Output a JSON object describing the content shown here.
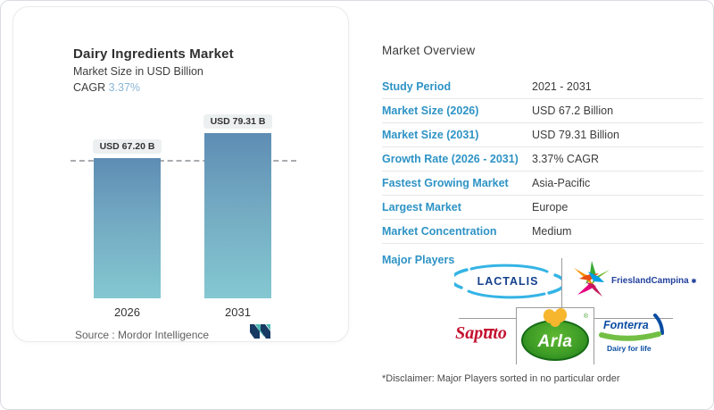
{
  "chart": {
    "title": "Dairy Ingredients Market",
    "subtitle": "Market Size in USD Billion",
    "cagr_label": "CAGR ",
    "cagr_value": "3.37%",
    "source_label": "Source :  Mordor Intelligence"
  },
  "chart_data": {
    "type": "bar",
    "categories": [
      "2026",
      "2031"
    ],
    "values": [
      67.2,
      79.31
    ],
    "bar_labels": [
      "USD 67.20 B",
      "USD 79.31 B"
    ],
    "title": "Dairy Ingredients Market",
    "ylabel": "Market Size in USD Billion",
    "ylim": [
      0,
      90
    ],
    "reference_line": 67.2,
    "grid": false,
    "bar_color_gradient": [
      "#5e8db4",
      "#84c8d1"
    ]
  },
  "overview": {
    "title": "Market Overview",
    "rows": [
      {
        "label": "Study Period",
        "value": "2021 - 2031"
      },
      {
        "label": "Market Size (2026)",
        "value": "USD 67.2 Billion"
      },
      {
        "label": "Market Size (2031)",
        "value": "USD 79.31 Billion"
      },
      {
        "label": "Growth Rate (2026 - 2031)",
        "value": "3.37% CAGR"
      },
      {
        "label": "Fastest Growing Market",
        "value": "Asia-Pacific"
      },
      {
        "label": "Largest Market",
        "value": "Europe"
      },
      {
        "label": "Market Concentration",
        "value": "Medium"
      }
    ],
    "major_players_label": "Major Players",
    "disclaimer": "*Disclaimer: Major Players sorted in no particular order"
  },
  "logos": {
    "lactalis": "LACTALIS",
    "frieslandcampina": "FrieslandCampina",
    "frieslandcampina_mark": "✱",
    "saputo": "Saputo",
    "arla": "Arla",
    "arla_reg": "®",
    "fonterra": "Fonterra",
    "fonterra_tagline": "Dairy for life"
  },
  "colors": {
    "accent_blue": "#2e93c5",
    "cagr_blue": "#8ab6d6",
    "bar_top": "#5e8db4",
    "bar_bottom": "#84c8d1",
    "text_dark": "#3a3a3a"
  }
}
